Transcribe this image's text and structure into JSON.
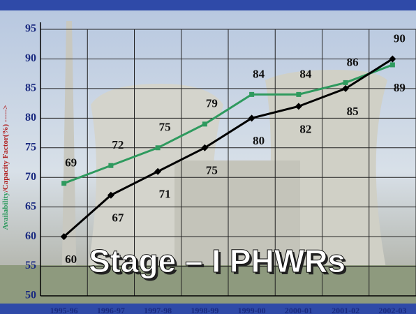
{
  "chart_data": {
    "type": "line",
    "title": "Stage – I PHWRs",
    "y_label": [
      "Availability",
      "/Capacity Factor(%) ----->"
    ],
    "categories": [
      "1995-96",
      "1996-97",
      "1997-98",
      "1998-99",
      "1999-00",
      "2000-01",
      "2001-02",
      "2002-03"
    ],
    "series": [
      {
        "color": "#2e9a5e",
        "values": [
          69,
          72,
          75,
          79,
          84,
          84,
          86,
          89
        ]
      },
      {
        "color": "#000000",
        "values": [
          60,
          67,
          71,
          75,
          80,
          82,
          85,
          90
        ]
      }
    ],
    "ylim": [
      50,
      95
    ],
    "yticks": [
      50,
      55,
      60,
      65,
      70,
      75,
      80,
      85,
      90,
      95
    ],
    "grid": true
  }
}
